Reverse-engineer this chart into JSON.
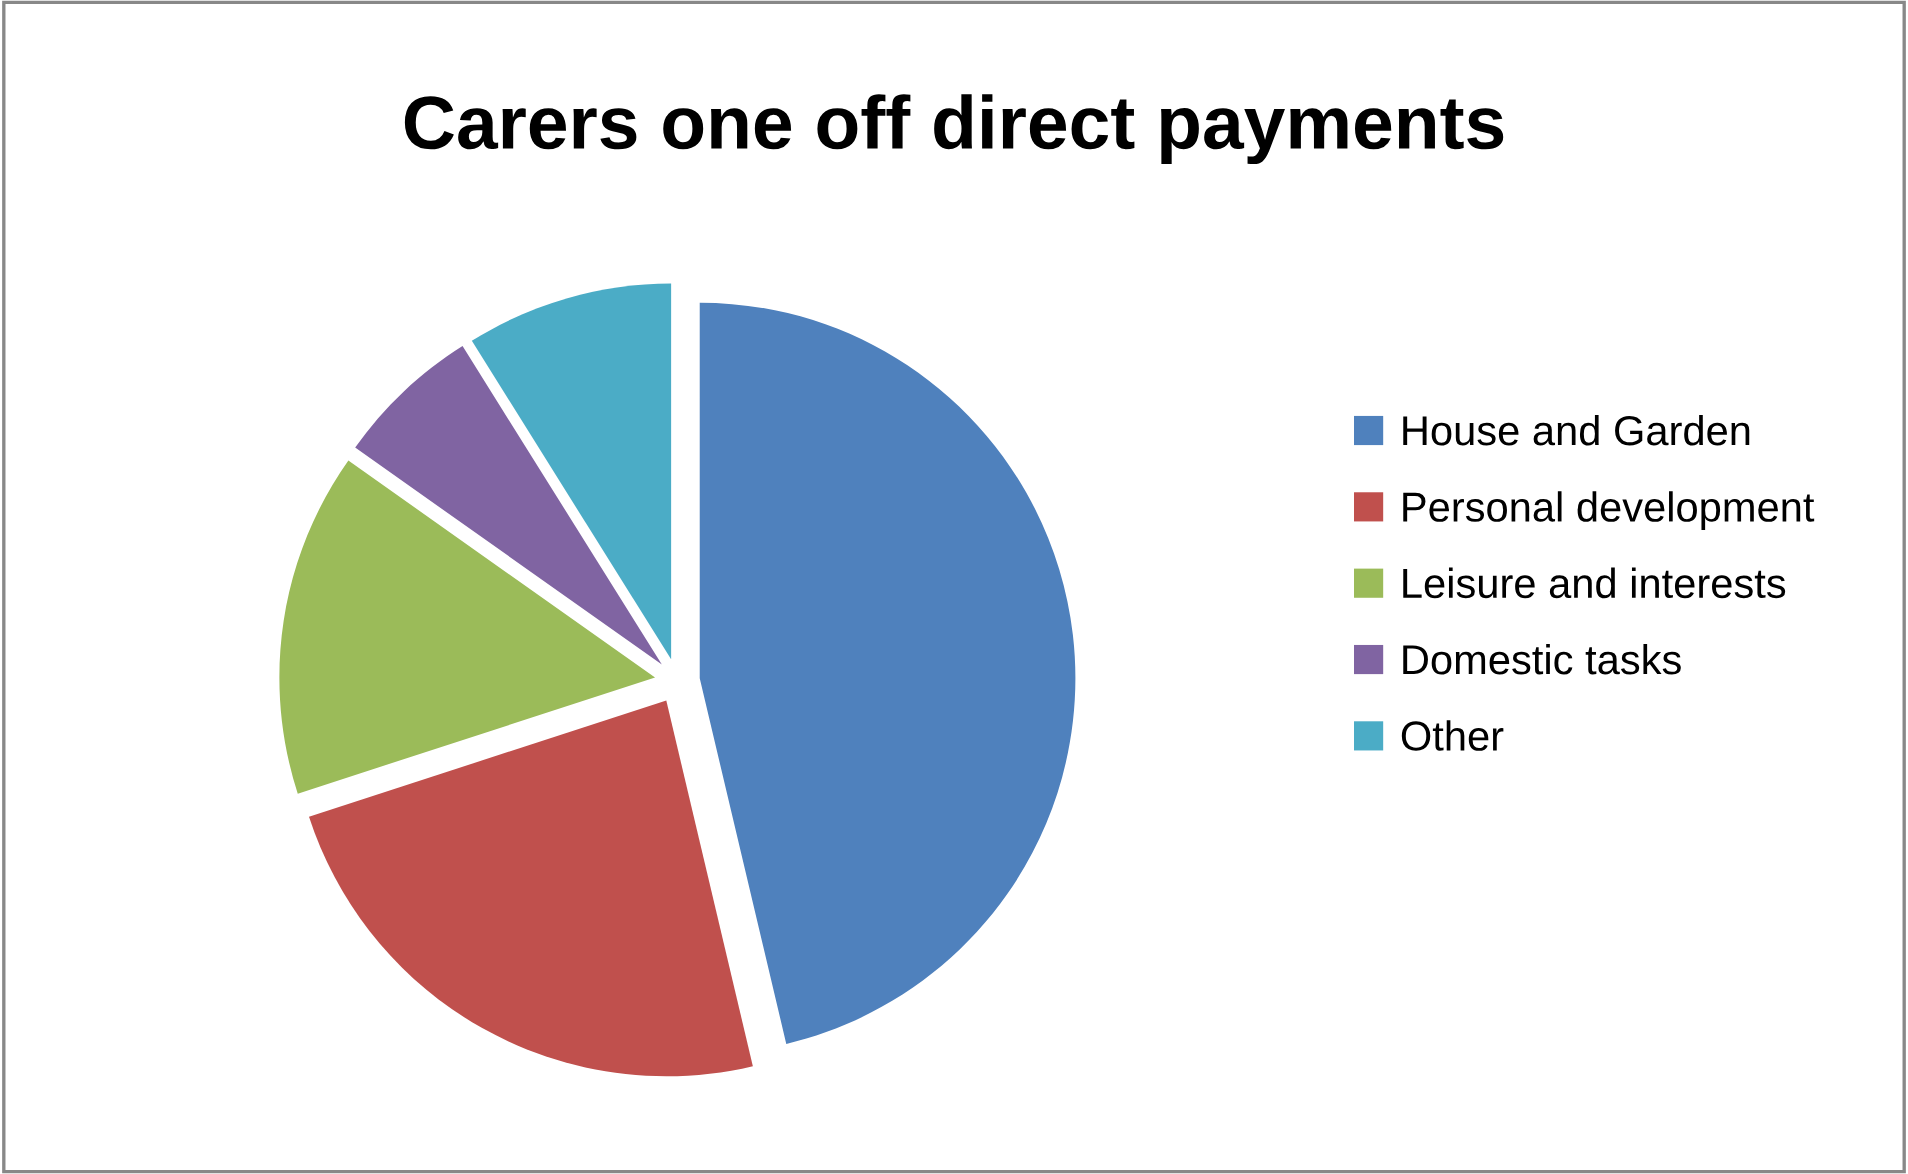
{
  "chart_data": {
    "type": "pie",
    "title": "Carers one off direct payments",
    "categories": [
      "House and Garden",
      "Personal development",
      "Leisure and interests",
      "Domestic tasks",
      "Other"
    ],
    "values": [
      46.3,
      23.7,
      14.8,
      6.3,
      8.9
    ],
    "colors": [
      "#4f81bd",
      "#c0504d",
      "#9bbb59",
      "#8064a2",
      "#4bacc6"
    ],
    "legend": "right"
  }
}
